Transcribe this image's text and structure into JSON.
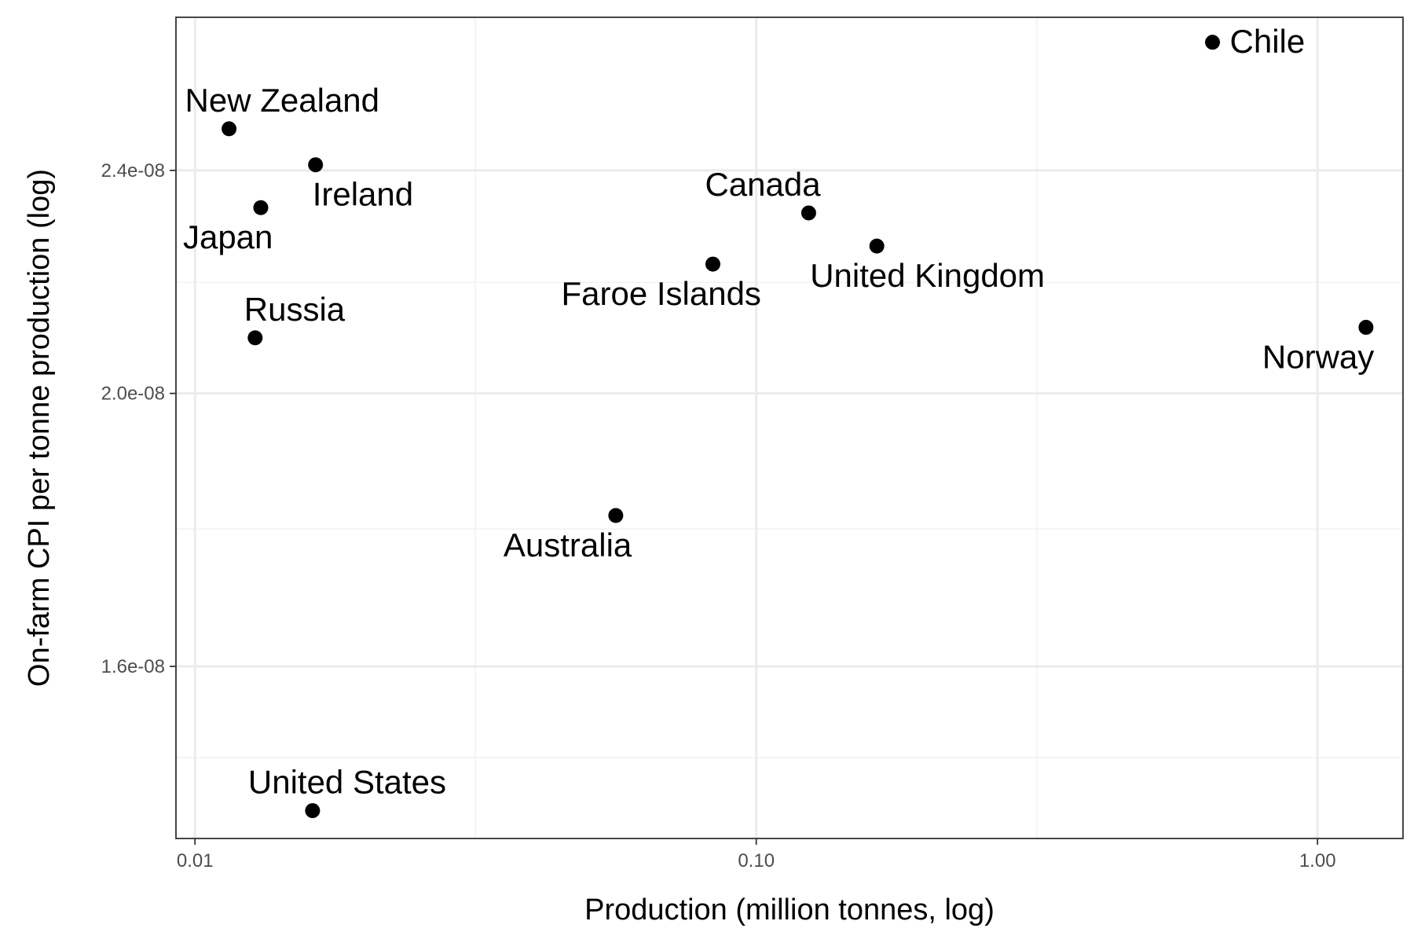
{
  "chart_data": {
    "type": "scatter",
    "title": "",
    "xlabel": "Production (million tonnes, log)",
    "ylabel": "On-farm CPI per tonne production (log)",
    "x_scale": "log10",
    "y_scale": "log10",
    "xlim": [
      0.00925,
      1.42
    ],
    "ylim": [
      1.39e-08,
      2.72e-08
    ],
    "x_ticks": [
      {
        "value": 0.01,
        "label": "0.01"
      },
      {
        "value": 0.1,
        "label": "0.10"
      },
      {
        "value": 1.0,
        "label": "1.00"
      }
    ],
    "y_ticks": [
      {
        "value": 1.6e-08,
        "label": "1.6e-08"
      },
      {
        "value": 2e-08,
        "label": "2.0e-08"
      },
      {
        "value": 2.4e-08,
        "label": "2.4e-08"
      }
    ],
    "x_minor_gridlines": [
      0.0316,
      0.316
    ],
    "y_minor_gridlines": [
      1.485e-08,
      1.79e-08,
      2.19e-08
    ],
    "grid": true,
    "point_color": "#000000",
    "points": [
      {
        "country": "Chile",
        "x": 0.65,
        "y": 2.665e-08,
        "label_pos": "right"
      },
      {
        "country": "New Zealand",
        "x": 0.0115,
        "y": 2.483e-08,
        "label_pos": "above"
      },
      {
        "country": "Ireland",
        "x": 0.0164,
        "y": 2.411e-08,
        "label_pos": "below-right"
      },
      {
        "country": "Japan",
        "x": 0.0131,
        "y": 2.328e-08,
        "label_pos": "below-left"
      },
      {
        "country": "Canada",
        "x": 0.124,
        "y": 2.318e-08,
        "label_pos": "above-left"
      },
      {
        "country": "United Kingdom",
        "x": 0.164,
        "y": 2.256e-08,
        "label_pos": "below-right"
      },
      {
        "country": "Faroe Islands",
        "x": 0.0837,
        "y": 2.223e-08,
        "label_pos": "below-left"
      },
      {
        "country": "Russia",
        "x": 0.0128,
        "y": 2.093e-08,
        "label_pos": "above-right"
      },
      {
        "country": "Norway",
        "x": 1.22,
        "y": 2.111e-08,
        "label_pos": "below-left"
      },
      {
        "country": "Australia",
        "x": 0.0562,
        "y": 1.81e-08,
        "label_pos": "below-left"
      },
      {
        "country": "United States",
        "x": 0.0162,
        "y": 1.422e-08,
        "label_pos": "above-right"
      }
    ]
  }
}
